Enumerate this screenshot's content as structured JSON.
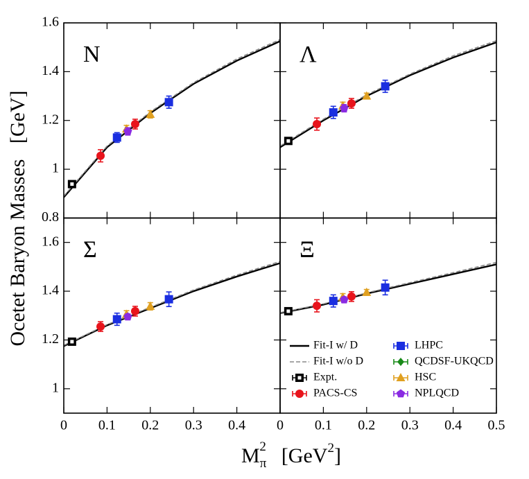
{
  "figure": {
    "ylabel": "Ocetet Baryon Masses   [GeV]",
    "xlabel": {
      "base": "M",
      "sub": "π",
      "sup": "2",
      "unit": "[GeV",
      "unit_sup": "2",
      "unit_end": "]"
    }
  },
  "chart_data": [
    {
      "type": "scatter",
      "label": "N",
      "xlim": [
        0,
        0.5
      ],
      "ylim": [
        0.8,
        1.6
      ],
      "xticks": [
        0,
        0.1,
        0.2,
        0.3,
        0.4
      ],
      "yticks": [
        0.8,
        1,
        1.2,
        1.4,
        1.6
      ],
      "series": [
        {
          "kind": "solid",
          "color": "#000000",
          "x": [
            0,
            0.1,
            0.2,
            0.3,
            0.4,
            0.5
          ],
          "values": [
            0.885,
            1.09,
            1.23,
            1.35,
            1.445,
            1.525
          ]
        },
        {
          "kind": "dashed",
          "color": "#888888",
          "x": [
            0,
            0.1,
            0.2,
            0.3,
            0.4,
            0.5
          ],
          "values": [
            0.89,
            1.095,
            1.235,
            1.355,
            1.452,
            1.532
          ]
        },
        {
          "kind": "points",
          "marker": "expt",
          "color": "#000000",
          "x": [
            0.019
          ],
          "values": [
            0.939
          ],
          "errors": [
            0.005
          ]
        },
        {
          "kind": "points",
          "marker": "circle",
          "color": "#e8141c",
          "x": [
            0.085,
            0.165
          ],
          "values": [
            1.055,
            1.185
          ],
          "errors": [
            0.025,
            0.02
          ]
        },
        {
          "kind": "points",
          "marker": "square",
          "color": "#1a2ee0",
          "x": [
            0.123,
            0.243
          ],
          "values": [
            1.13,
            1.275
          ],
          "errors": [
            0.02,
            0.025
          ]
        },
        {
          "kind": "points",
          "marker": "triangle",
          "color": "#e0a020",
          "x": [
            0.145,
            0.2
          ],
          "values": [
            1.165,
            1.225
          ],
          "errors": [
            0.015,
            0.015
          ]
        },
        {
          "kind": "points",
          "marker": "pentagon",
          "color": "#8a2be2",
          "x": [
            0.148
          ],
          "values": [
            1.155
          ],
          "errors": [
            0.015
          ]
        }
      ]
    },
    {
      "type": "scatter",
      "label": "Λ",
      "xlim": [
        0,
        0.5
      ],
      "ylim": [
        0.8,
        1.6
      ],
      "xticks": [
        0,
        0.1,
        0.2,
        0.3,
        0.4,
        0.5
      ],
      "yticks": [
        0.8,
        1,
        1.2,
        1.4,
        1.6
      ],
      "series": [
        {
          "kind": "solid",
          "color": "#000000",
          "x": [
            0,
            0.1,
            0.2,
            0.3,
            0.4,
            0.5
          ],
          "values": [
            1.09,
            1.2,
            1.3,
            1.385,
            1.458,
            1.52
          ]
        },
        {
          "kind": "dashed",
          "color": "#888888",
          "x": [
            0,
            0.1,
            0.2,
            0.3,
            0.4,
            0.5
          ],
          "values": [
            1.095,
            1.205,
            1.305,
            1.39,
            1.465,
            1.527
          ]
        },
        {
          "kind": "points",
          "marker": "expt",
          "color": "#000000",
          "x": [
            0.019
          ],
          "values": [
            1.116
          ],
          "errors": [
            0.005
          ]
        },
        {
          "kind": "points",
          "marker": "circle",
          "color": "#e8141c",
          "x": [
            0.085,
            0.165
          ],
          "values": [
            1.185,
            1.27
          ],
          "errors": [
            0.025,
            0.02
          ]
        },
        {
          "kind": "points",
          "marker": "square",
          "color": "#1a2ee0",
          "x": [
            0.123,
            0.243
          ],
          "values": [
            1.233,
            1.34
          ],
          "errors": [
            0.025,
            0.025
          ]
        },
        {
          "kind": "points",
          "marker": "triangle",
          "color": "#e0a020",
          "x": [
            0.145,
            0.2
          ],
          "values": [
            1.26,
            1.3
          ],
          "errors": [
            0.015,
            0.012
          ]
        },
        {
          "kind": "points",
          "marker": "pentagon",
          "color": "#8a2be2",
          "x": [
            0.148
          ],
          "values": [
            1.25
          ],
          "errors": [
            0.015
          ]
        }
      ]
    },
    {
      "type": "scatter",
      "label": "Σ",
      "xlim": [
        0,
        0.5
      ],
      "ylim": [
        0.9,
        1.7
      ],
      "xticks": [
        0,
        0.1,
        0.2,
        0.3,
        0.4
      ],
      "yticks": [
        1,
        1.2,
        1.4,
        1.6
      ],
      "series": [
        {
          "kind": "solid",
          "color": "#000000",
          "x": [
            0,
            0.1,
            0.2,
            0.3,
            0.4,
            0.5
          ],
          "values": [
            1.175,
            1.26,
            1.33,
            1.4,
            1.46,
            1.515
          ]
        },
        {
          "kind": "dashed",
          "color": "#888888",
          "x": [
            0,
            0.1,
            0.2,
            0.3,
            0.4,
            0.5
          ],
          "values": [
            1.178,
            1.263,
            1.334,
            1.405,
            1.466,
            1.522
          ]
        },
        {
          "kind": "points",
          "marker": "expt",
          "color": "#000000",
          "x": [
            0.019
          ],
          "values": [
            1.193
          ],
          "errors": [
            0.005
          ]
        },
        {
          "kind": "points",
          "marker": "circle",
          "color": "#e8141c",
          "x": [
            0.085,
            0.165
          ],
          "values": [
            1.255,
            1.318
          ],
          "errors": [
            0.02,
            0.02
          ]
        },
        {
          "kind": "points",
          "marker": "square",
          "color": "#1a2ee0",
          "x": [
            0.123,
            0.243
          ],
          "values": [
            1.285,
            1.367
          ],
          "errors": [
            0.025,
            0.03
          ]
        },
        {
          "kind": "points",
          "marker": "triangle",
          "color": "#e0a020",
          "x": [
            0.145,
            0.2
          ],
          "values": [
            1.305,
            1.338
          ],
          "errors": [
            0.015,
            0.015
          ]
        },
        {
          "kind": "points",
          "marker": "pentagon",
          "color": "#8a2be2",
          "x": [
            0.148
          ],
          "values": [
            1.295
          ],
          "errors": [
            0.012
          ]
        }
      ]
    },
    {
      "type": "scatter",
      "label": "Ξ",
      "xlim": [
        0,
        0.5
      ],
      "ylim": [
        0.9,
        1.7
      ],
      "xticks": [
        0,
        0.1,
        0.2,
        0.3,
        0.4,
        0.5
      ],
      "yticks": [
        1,
        1.2,
        1.4,
        1.6
      ],
      "legend": "lower right",
      "series": [
        {
          "name": "Fit-I w/ D",
          "kind": "solid",
          "color": "#000000",
          "x": [
            0,
            0.1,
            0.2,
            0.3,
            0.4,
            0.5
          ],
          "values": [
            1.31,
            1.345,
            1.39,
            1.43,
            1.47,
            1.51
          ]
        },
        {
          "name": "Fit-I w/o D",
          "kind": "dashed",
          "color": "#888888",
          "x": [
            0,
            0.1,
            0.2,
            0.3,
            0.4,
            0.5
          ],
          "values": [
            1.312,
            1.348,
            1.393,
            1.435,
            1.476,
            1.518
          ]
        },
        {
          "name": "Expt.",
          "kind": "points",
          "marker": "expt",
          "color": "#000000",
          "x": [
            0.019
          ],
          "values": [
            1.318
          ],
          "errors": [
            0.005
          ]
        },
        {
          "name": "PACS-CS",
          "kind": "points",
          "marker": "circle",
          "color": "#e8141c",
          "x": [
            0.085,
            0.165
          ],
          "values": [
            1.34,
            1.378
          ],
          "errors": [
            0.025,
            0.02
          ]
        },
        {
          "name": "LHPC",
          "kind": "points",
          "marker": "square",
          "color": "#1a2ee0",
          "x": [
            0.123,
            0.243
          ],
          "values": [
            1.36,
            1.415
          ],
          "errors": [
            0.025,
            0.03
          ]
        },
        {
          "name": "QCDSF-UKQCD",
          "kind": "points",
          "marker": "diamond",
          "color": "#188a18",
          "x": [],
          "values": [],
          "errors": []
        },
        {
          "name": "HSC",
          "kind": "points",
          "marker": "triangle",
          "color": "#e0a020",
          "x": [
            0.145,
            0.2
          ],
          "values": [
            1.375,
            1.395
          ],
          "errors": [
            0.015,
            0.012
          ]
        },
        {
          "name": "NPLQCD",
          "kind": "points",
          "marker": "pentagon",
          "color": "#8a2be2",
          "x": [
            0.148
          ],
          "values": [
            1.365
          ],
          "errors": [
            0.012
          ]
        }
      ]
    }
  ]
}
